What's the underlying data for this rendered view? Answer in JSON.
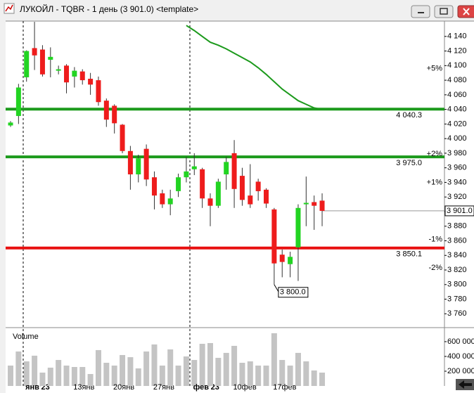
{
  "chart_data": {
    "type": "candlestick",
    "title": "ЛУКОЙЛ - TQBR - 1 день (3 901.0) <template>",
    "categories": [
      null,
      null,
      null,
      "янв'23",
      null,
      null,
      null,
      null,
      null,
      "13янв",
      null,
      null,
      null,
      null,
      "20янв",
      null,
      null,
      null,
      null,
      "27янв",
      null,
      null,
      null,
      null,
      "фев'23",
      null,
      null,
      null,
      null,
      "10фев",
      null,
      null,
      null,
      null,
      "17фев",
      null,
      null,
      null,
      null,
      null
    ],
    "open": [
      4018,
      4031,
      4084,
      4124,
      4122,
      4108,
      4093,
      4100,
      4085,
      4092,
      4082,
      4080,
      4052,
      4045,
      4019,
      3983,
      3951,
      3986,
      3947,
      3925,
      3910,
      3928,
      3947,
      3958,
      3958,
      3918,
      3908,
      3951,
      3980,
      3949,
      3922,
      3941,
      3930,
      3903,
      3841,
      3828,
      3851,
      3910,
      3913,
      3915
    ],
    "close": [
      4022,
      4070,
      4120,
      4114,
      4088,
      4112,
      4095,
      4077,
      4093,
      4080,
      4074,
      4050,
      4026,
      4021,
      3983,
      3951,
      3973,
      3944,
      3922,
      3910,
      3918,
      3947,
      3955,
      3962,
      3918,
      3908,
      3941,
      3968,
      3931,
      3916,
      3910,
      3928,
      3911,
      3829,
      3831,
      3838,
      3905,
      3912,
      3908,
      3901
    ],
    "high": [
      4024,
      4075,
      4121,
      4160,
      4128,
      4125,
      4100,
      4102,
      4098,
      4095,
      4090,
      4085,
      4055,
      4047,
      4020,
      3990,
      3978,
      3992,
      3955,
      3930,
      3930,
      3952,
      3975,
      3980,
      3960,
      3925,
      3945,
      3975,
      3998,
      3960,
      3965,
      3945,
      3932,
      3905,
      3848,
      3845,
      3910,
      3948,
      3922,
      3925
    ],
    "low": [
      4016,
      4020,
      4078,
      4094,
      4085,
      4084,
      4088,
      4062,
      4070,
      4074,
      4060,
      4045,
      4016,
      4007,
      3980,
      3930,
      3940,
      3935,
      3903,
      3905,
      3895,
      3920,
      3940,
      3950,
      3905,
      3880,
      3905,
      3930,
      3905,
      3908,
      3905,
      3915,
      3905,
      3800,
      3810,
      3810,
      3805,
      3880,
      3875,
      3880
    ],
    "up_color": "#22d422",
    "down_color": "#ee1c1c",
    "ylim": [
      3742,
      4161
    ],
    "yticks": [
      {
        "value": 3760,
        "label": "3 760"
      },
      {
        "value": 3780,
        "label": "3 780"
      },
      {
        "value": 3800,
        "label": "3 800"
      },
      {
        "value": 3820,
        "label": "3 820"
      },
      {
        "value": 3840,
        "label": "3 840"
      },
      {
        "value": 3860,
        "label": "3 860"
      },
      {
        "value": 3880,
        "label": "3 880"
      },
      {
        "value": 3900,
        "label": "3 900"
      },
      {
        "value": 3920,
        "label": "3 920"
      },
      {
        "value": 3940,
        "label": "3 940"
      },
      {
        "value": 3960,
        "label": "3 960"
      },
      {
        "value": 3980,
        "label": "3 980"
      },
      {
        "value": 4000,
        "label": "4 000"
      },
      {
        "value": 4020,
        "label": "4 020"
      },
      {
        "value": 4040,
        "label": "4 040"
      },
      {
        "value": 4060,
        "label": "4 060"
      },
      {
        "value": 4080,
        "label": "4 080"
      },
      {
        "value": 4100,
        "label": "4 100"
      },
      {
        "value": 4120,
        "label": "4 120"
      },
      {
        "value": 4140,
        "label": "4 140"
      }
    ],
    "moving_average": {
      "color": "#1c9a1c",
      "values": [
        null,
        null,
        null,
        null,
        null,
        null,
        null,
        null,
        null,
        null,
        null,
        null,
        null,
        null,
        null,
        null,
        null,
        null,
        null,
        null,
        null,
        null,
        4155,
        4148,
        4140,
        4132,
        4128,
        4123,
        4117,
        4111,
        4105,
        4097,
        4088,
        4078,
        4068,
        4060,
        4052,
        4047,
        4042,
        4040
      ]
    },
    "levels": [
      {
        "value": 4040.3,
        "label": "4 040.3",
        "color": "#1c9a1c"
      },
      {
        "value": 3975.0,
        "label": "3 975.0",
        "color": "#1c9a1c"
      },
      {
        "value": 3850.1,
        "label": "3 850.1",
        "color": "#e81010"
      }
    ],
    "percent_marks": [
      {
        "value": 4096,
        "label": "+5%",
        "color": "#1c9a1c"
      },
      {
        "value": 3979,
        "label": "+2%",
        "color": "#1c9a1c"
      },
      {
        "value": 3940,
        "label": "+1%",
        "color": "#1c9a1c"
      },
      {
        "value": 3862,
        "label": "-1%",
        "color": "#e81010"
      },
      {
        "value": 3823,
        "label": "-2%",
        "color": "#e81010"
      }
    ],
    "last_price": {
      "value": 3901.0,
      "label": "3 901.0"
    },
    "low_label": {
      "value": 3800.0,
      "label": "3 800.0"
    },
    "volume": {
      "label": "Volume",
      "color": "#c4c4c4",
      "values": [
        276000,
        467000,
        333000,
        410000,
        181000,
        248000,
        352000,
        276000,
        257000,
        257000,
        162000,
        486000,
        314000,
        276000,
        419000,
        390000,
        238000,
        467000,
        562000,
        276000,
        495000,
        276000,
        400000,
        352000,
        571000,
        581000,
        381000,
        448000,
        543000,
        314000,
        333000,
        276000,
        276000,
        714000,
        352000,
        276000,
        448000,
        333000,
        210000,
        181000
      ],
      "ylim": [
        0,
        771000
      ],
      "yticks": [
        {
          "value": 200000,
          "label": "200 000"
        },
        {
          "value": 400000,
          "label": "400 000"
        },
        {
          "value": 600000,
          "label": "600 000"
        }
      ]
    }
  }
}
